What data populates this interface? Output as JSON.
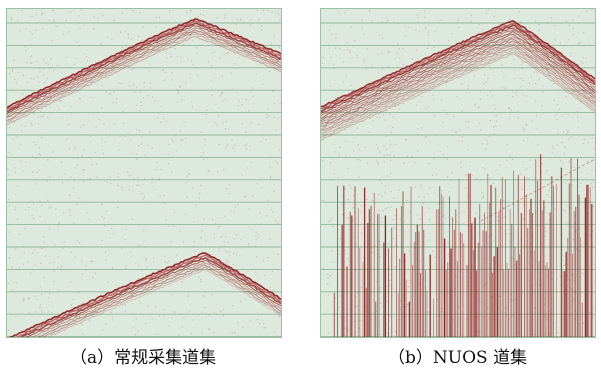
{
  "figure": {
    "panels": [
      {
        "caption": "（a）常规采集道集"
      },
      {
        "caption": "（b）NUOS 道集"
      }
    ]
  },
  "colors": {
    "background": "#dde9dc",
    "grid": "#8fb89a",
    "wavelet": "#8e1a1c",
    "wavelet_light": "#b8575a",
    "noise": "#9a6a6a"
  }
}
